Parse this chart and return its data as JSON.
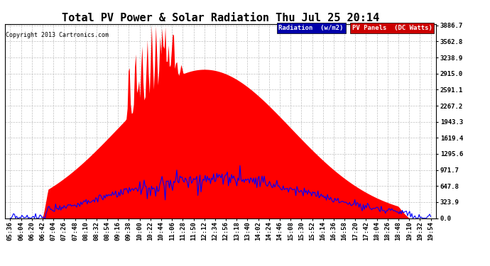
{
  "title": "Total PV Power & Solar Radiation Thu Jul 25 20:14",
  "copyright": "Copyright 2013 Cartronics.com",
  "yticks": [
    0.0,
    323.9,
    647.8,
    971.7,
    1295.6,
    1619.4,
    1943.3,
    2267.2,
    2591.1,
    2915.0,
    3238.9,
    3562.8,
    3886.7
  ],
  "ymax": 3886.7,
  "ymin": 0.0,
  "legend_radiation_label": "Radiation  (w/m2)",
  "legend_pv_label": "PV Panels  (DC Watts)",
  "pv_color": "#FF0000",
  "radiation_color": "#0000FF",
  "radiation_legend_bg": "#0000AA",
  "pv_legend_bg": "#CC0000",
  "background_color": "#FFFFFF",
  "grid_color": "#C0C0C0",
  "title_fontsize": 11,
  "copyright_fontsize": 6,
  "tick_fontsize": 6.5,
  "figsize": [
    6.9,
    3.75
  ],
  "dpi": 100,
  "xtick_labels": [
    "05:36",
    "06:04",
    "06:20",
    "06:42",
    "07:04",
    "07:26",
    "07:48",
    "08:10",
    "08:32",
    "08:54",
    "09:16",
    "09:38",
    "10:00",
    "10:22",
    "10:44",
    "11:06",
    "11:28",
    "11:50",
    "12:12",
    "12:34",
    "12:56",
    "13:18",
    "13:40",
    "14:02",
    "14:24",
    "14:46",
    "15:08",
    "15:30",
    "15:52",
    "16:14",
    "16:36",
    "16:58",
    "17:20",
    "17:42",
    "18:04",
    "18:26",
    "18:48",
    "19:10",
    "19:32",
    "19:54"
  ]
}
